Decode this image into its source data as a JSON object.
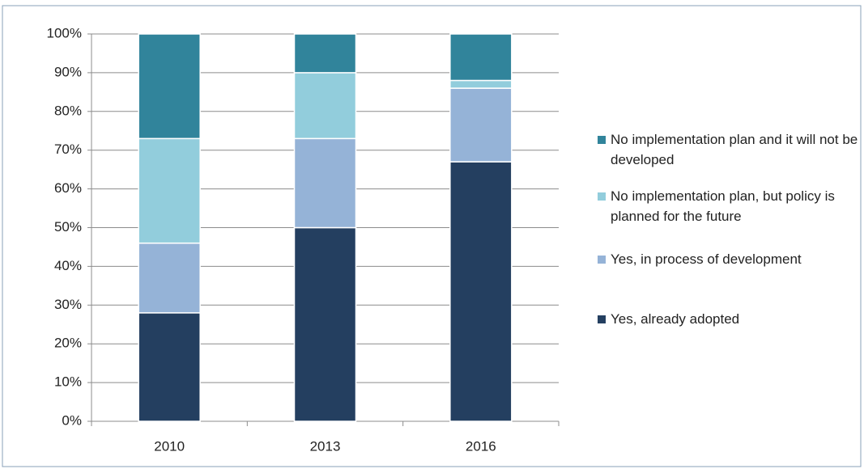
{
  "chart_data": {
    "type": "stacked-bar",
    "categories": [
      "2010",
      "2013",
      "2016"
    ],
    "series": [
      {
        "name": "Yes, already adopted",
        "color": "#243f60",
        "values": [
          28,
          50,
          67
        ]
      },
      {
        "name": "Yes, in process of development",
        "color": "#95b3d7",
        "values": [
          18,
          23,
          19
        ]
      },
      {
        "name": "No implementation plan, but policy is planned for the future",
        "color": "#92cddc",
        "values": [
          27,
          17,
          2
        ]
      },
      {
        "name": "No implementation plan and it will not be developed",
        "color": "#31849b",
        "values": [
          27,
          10,
          12
        ]
      }
    ],
    "ylim": [
      0,
      100
    ],
    "yticks": [
      {
        "value": 0,
        "label": "0%"
      },
      {
        "value": 10,
        "label": "10%"
      },
      {
        "value": 20,
        "label": "20%"
      },
      {
        "value": 30,
        "label": "30%"
      },
      {
        "value": 40,
        "label": "40%"
      },
      {
        "value": 50,
        "label": "50%"
      },
      {
        "value": 60,
        "label": "60%"
      },
      {
        "value": 70,
        "label": "70%"
      },
      {
        "value": 80,
        "label": "80%"
      },
      {
        "value": 90,
        "label": "90%"
      },
      {
        "value": 100,
        "label": "100%"
      }
    ],
    "grid": true,
    "legend": "right"
  }
}
